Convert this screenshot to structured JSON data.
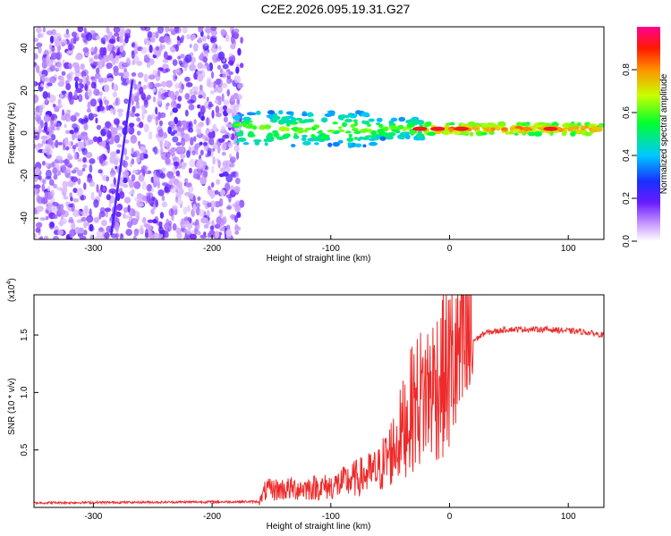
{
  "title": "C2E2.2026.095.19.31.G27",
  "chart_data": [
    {
      "type": "heatmap",
      "title": "C2E2.2026.095.19.31.G27",
      "xlabel": "Height of straight line (km)",
      "ylabel": "Frequency (Hz)",
      "xlim": [
        -350,
        130
      ],
      "ylim": [
        -50,
        50
      ],
      "x_ticks": [
        -300,
        -200,
        -100,
        0,
        100
      ],
      "x_tick_labels": [
        "-300",
        "-200",
        "-100",
        "0",
        "100"
      ],
      "y_ticks": [
        -40,
        -20,
        0,
        20,
        40
      ],
      "y_tick_labels": [
        "-40",
        "-20",
        "0",
        "20",
        "40"
      ],
      "colorbar": {
        "label": "Normalized spectral amplitude",
        "range": [
          0.0,
          1.0
        ],
        "ticks": [
          0.0,
          0.2,
          0.4,
          0.6,
          0.8
        ],
        "tick_labels": [
          "0.0",
          "0.2",
          "0.4",
          "0.6",
          "0.8"
        ],
        "colors": [
          "#ffffff",
          "#9b30ff",
          "#3a00ff",
          "#00c8ff",
          "#00ff40",
          "#ffff00",
          "#ff2000",
          "#ff0080"
        ]
      },
      "features": {
        "noise_region_x": [
          -350,
          -175
        ],
        "diagonal_streak_freq_at_x": [
          [
            -285,
            -48
          ],
          [
            -267,
            25
          ]
        ],
        "signal_band_center_hz": 2,
        "signal_band_x": [
          -180,
          130
        ],
        "strong_peaks_x": [
          -25,
          -10,
          10,
          85
        ]
      }
    },
    {
      "type": "line",
      "xlabel": "Height of straight line (km)",
      "ylabel": "SNR (10 * v/v)",
      "y_scale_label": "(x10",
      "y_scale_exponent": "4",
      "xlim": [
        -350,
        130
      ],
      "ylim": [
        0,
        1.85
      ],
      "x_ticks": [
        -300,
        -200,
        -100,
        0,
        100
      ],
      "x_tick_labels": [
        "-300",
        "-200",
        "-100",
        "0",
        "100"
      ],
      "y_ticks": [
        0.5,
        1.0,
        1.5
      ],
      "y_tick_labels": [
        "0.5",
        "1.0",
        "1.5"
      ],
      "line_color": "#ee2a2a",
      "envelope": {
        "x": [
          -350,
          -160,
          -155,
          -100,
          -60,
          -45,
          -30,
          -20,
          -10,
          0,
          10,
          20,
          30,
          50,
          80,
          110,
          130
        ],
        "y": [
          0.04,
          0.05,
          0.15,
          0.18,
          0.32,
          0.55,
          0.9,
          1.0,
          1.1,
          1.2,
          1.35,
          1.45,
          1.52,
          1.55,
          1.55,
          1.53,
          1.5
        ]
      }
    }
  ]
}
